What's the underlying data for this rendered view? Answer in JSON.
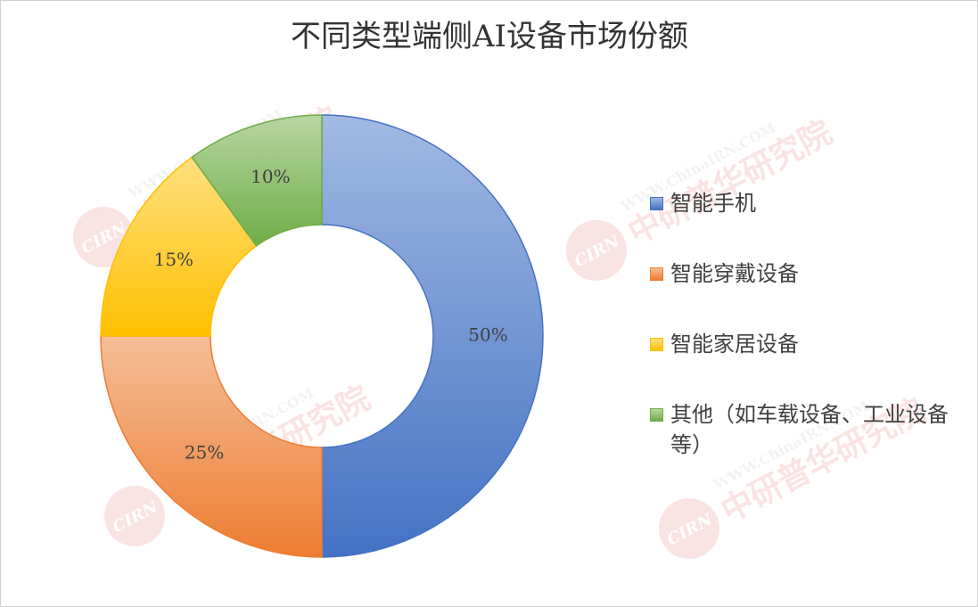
{
  "chart_data": {
    "type": "donut",
    "title": "不同类型端侧AI设备市场份额",
    "categories": [
      "智能手机",
      "智能穿戴设备",
      "智能家居设备",
      "其他（如车载设备、工业设备等）"
    ],
    "values": [
      50,
      25,
      15,
      10
    ],
    "value_labels": [
      "50%",
      "25%",
      "15%",
      "10%"
    ],
    "colors": [
      "#4472c4",
      "#ed7d31",
      "#ffc000",
      "#70ad47"
    ],
    "legend": "right"
  },
  "watermark": {
    "logo": "CIRN",
    "name": "中研普华研究院",
    "url": "WWW.ChinaIRN.COM"
  }
}
